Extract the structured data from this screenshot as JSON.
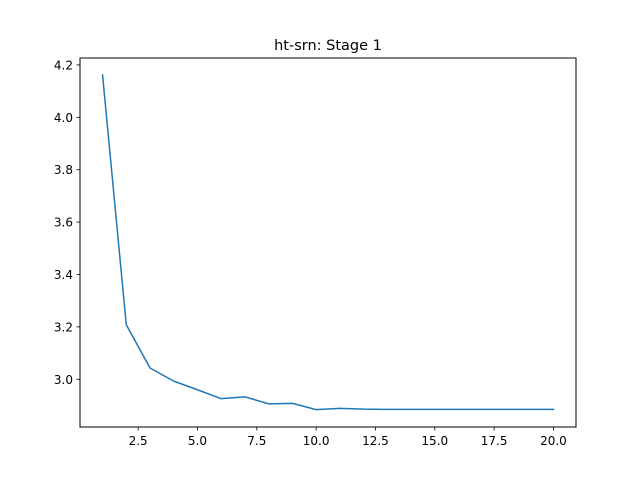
{
  "chart_data": {
    "type": "line",
    "title": "ht-srn: Stage 1",
    "xlabel": "",
    "ylabel": "",
    "xlim": [
      0.05,
      20.95
    ],
    "ylim": [
      2.8178,
      4.2265
    ],
    "x_ticks": [
      2.5,
      5.0,
      7.5,
      10.0,
      12.5,
      15.0,
      17.5,
      20.0
    ],
    "x_tick_labels": [
      "2.5",
      "5.0",
      "7.5",
      "10.0",
      "12.5",
      "15.0",
      "17.5",
      "20.0"
    ],
    "y_ticks": [
      3.0,
      3.2,
      3.4,
      3.6,
      3.8,
      4.0,
      4.2
    ],
    "y_tick_labels": [
      "3.0",
      "3.2",
      "3.4",
      "3.6",
      "3.8",
      "4.0",
      "4.2"
    ],
    "grid": false,
    "legend": "none",
    "series": [
      {
        "color": "#1f77b4",
        "x": [
          1,
          2,
          3,
          4,
          5,
          6,
          7,
          8,
          9,
          10,
          11,
          12,
          13,
          14,
          15,
          16,
          17,
          18,
          19,
          20
        ],
        "y": [
          4.162,
          3.208,
          3.043,
          2.993,
          2.96,
          2.926,
          2.933,
          2.906,
          2.908,
          2.884,
          2.889,
          2.886,
          2.885,
          2.885,
          2.885,
          2.885,
          2.885,
          2.885,
          2.885,
          2.885
        ]
      }
    ]
  }
}
